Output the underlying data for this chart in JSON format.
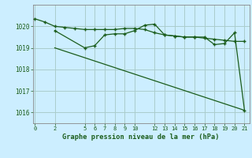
{
  "title": "Graphe pression niveau de la mer (hPa)",
  "bg_color": "#cceeff",
  "grid_color": "#aacccc",
  "line_color": "#1a5c1a",
  "xlim": [
    -0.2,
    21.5
  ],
  "ylim": [
    1015.5,
    1021.0
  ],
  "yticks": [
    1016,
    1017,
    1018,
    1019,
    1020
  ],
  "xticks": [
    0,
    2,
    5,
    6,
    7,
    8,
    9,
    10,
    12,
    13,
    14,
    15,
    16,
    17,
    18,
    19,
    20,
    21
  ],
  "series1_x": [
    0,
    1,
    2,
    3,
    4,
    5,
    6,
    7,
    8,
    9,
    10,
    11,
    12,
    13,
    14,
    15,
    16,
    17,
    18,
    19,
    20,
    21
  ],
  "series1_y": [
    1020.35,
    1020.2,
    1020.0,
    1019.95,
    1019.9,
    1019.85,
    1019.85,
    1019.85,
    1019.85,
    1019.9,
    1019.9,
    1019.85,
    1019.7,
    1019.6,
    1019.55,
    1019.5,
    1019.5,
    1019.45,
    1019.4,
    1019.35,
    1019.3,
    1019.3
  ],
  "series2_x": [
    2,
    5,
    6,
    7,
    8,
    9,
    10,
    11,
    12,
    13,
    14,
    15,
    16,
    17,
    18,
    19,
    20,
    21
  ],
  "series2_y": [
    1019.8,
    1019.0,
    1019.1,
    1019.6,
    1019.65,
    1019.65,
    1019.8,
    1020.05,
    1020.1,
    1019.6,
    1019.55,
    1019.5,
    1019.5,
    1019.5,
    1019.15,
    1019.2,
    1019.7,
    1016.1
  ],
  "series3_x": [
    2,
    21
  ],
  "series3_y": [
    1019.0,
    1016.1
  ],
  "markersize": 2.5
}
